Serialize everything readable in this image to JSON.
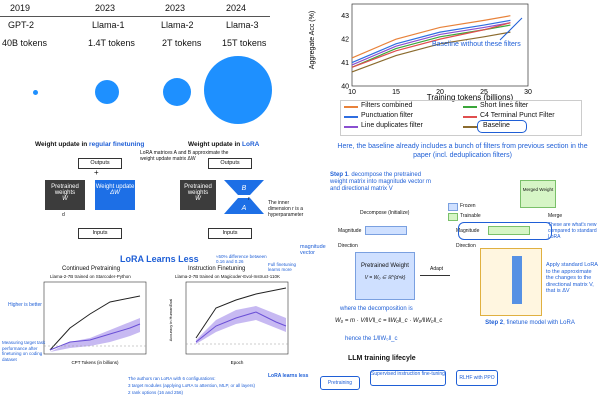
{
  "timeline": {
    "years": [
      "2019",
      "2023",
      "2023",
      "2024"
    ],
    "models": [
      "GPT-2",
      "Llama-1",
      "Llama-2",
      "Llama-3"
    ],
    "tokens": [
      "40B tokens",
      "1.4T tokens",
      "2T tokens",
      "15T tokens"
    ],
    "circle_color": "#1e90ff"
  },
  "filters_chart": {
    "chart_data": {
      "type": "line",
      "ylabel": "Aggregate Acc (%)",
      "xlabel": "Training tokens (billions)",
      "x_ticks": [
        "10",
        "15",
        "20",
        "25",
        "30"
      ],
      "y_ticks": [
        "40",
        "41",
        "42",
        "43"
      ],
      "xlim": [
        10,
        30
      ],
      "ylim": [
        40,
        43.5
      ],
      "annotation": "Baseline without these filters",
      "series": [
        {
          "name": "Filters combined",
          "color": "#e8823a",
          "x": [
            10,
            15,
            20,
            25,
            28
          ],
          "y": [
            41.2,
            42.0,
            42.5,
            42.8,
            43.0
          ]
        },
        {
          "name": "Punctuation filter",
          "color": "#2f6ee0",
          "x": [
            10,
            15,
            20,
            25,
            28
          ],
          "y": [
            41.0,
            41.8,
            42.3,
            42.6,
            42.8
          ]
        },
        {
          "name": "Line duplicates filter",
          "color": "#8a4fd0",
          "x": [
            10,
            15,
            20,
            25,
            28
          ],
          "y": [
            40.9,
            41.7,
            42.2,
            42.5,
            42.7
          ]
        },
        {
          "name": "Short lines filter",
          "color": "#3aa63a",
          "x": [
            10,
            15,
            20,
            25,
            28
          ],
          "y": [
            40.8,
            41.6,
            42.1,
            42.4,
            42.6
          ]
        },
        {
          "name": "C4 Terminal Punct Filter",
          "color": "#e04e4e",
          "x": [
            10,
            15,
            20,
            25,
            28
          ],
          "y": [
            40.8,
            41.5,
            42.0,
            42.4,
            42.7
          ]
        },
        {
          "name": "Baseline",
          "color": "#8b6b2e",
          "x": [
            10,
            15,
            20,
            25,
            28
          ],
          "y": [
            40.6,
            41.3,
            41.8,
            42.1,
            42.3
          ]
        }
      ]
    },
    "caption": "Here, the baseline already includes a bunch of filters from previous section in the paper (incl. deduplication filters)"
  },
  "lora_diagram": {
    "title_regular_prefix": "Weight update in ",
    "title_regular_hl": "regular finetuning",
    "title_lora_prefix": "Weight update in ",
    "title_lora_hl": "LoRA",
    "outputs": "Outputs",
    "inputs": "Inputs",
    "pretrained": "Pretrained weights",
    "pretrained_sym": "W",
    "update": "Weight update",
    "update_sym": "ΔW",
    "lora_note": "LoRA matrices A and B approximate the weight update matrix ΔW",
    "inner_dim_note": "The inner dimension r is a hyperparameter",
    "b_sym": "B",
    "a_sym": "A",
    "d_label": "d",
    "r_label": "r"
  },
  "lora_learns_less": {
    "title": "LoRA Learns Less",
    "left_title": "Continued Pretraining",
    "left_sub": "Llama-2-7B trained on Starcoder-Python",
    "right_title": "Instruction Finetuning",
    "right_sub": "Llama-2-7B trained on Magicoder-Evol-Instruct-110K",
    "diff_note": "≈50% difference between 0.16 and 0.26",
    "full_ft_note": "Full finetuning learns more",
    "higher_better": "Higher is better",
    "measuring_note": "Measuring target task performance after finetuning on coding dataset",
    "lora_less": "LoRA learns less",
    "configs_note": "The authors ran LoRA with 6 configurations:",
    "config_1": "3 target modules (applying LoRA to attention, MLP, or all layers)",
    "config_2": "2 rank options (16 and 256)",
    "left_xlabel": "CPT Tokens (in billions)",
    "right_xlabel": "Epoch",
    "ylabel": "Accuracy in HumanEval",
    "legend": [
      "LoRA rnk r ...",
      "LoRA r=256",
      "full finetuning"
    ],
    "base_model": "base model"
  },
  "dora": {
    "step1_title": "Step 1",
    "step1_text": ". decompose the pretrained weight matrix into magnitude vector m and directional matrix V",
    "decompose": "Decompose (Initialize)",
    "magnitude": "Magnitude",
    "direction": "Direction",
    "magnitude_vector": "magnitude vector",
    "pretrained": "Pretrained Weight",
    "pretrained_formula": "V = W₀ ∈ ℝ^{d×k}",
    "adapt": "Adapt",
    "merge": "Merge",
    "merged": "Merged Weight",
    "frozen": "Frozen",
    "trainable": "Trainable",
    "new_note": "These are what's new compared to standard LoRA",
    "apply_note": "Apply standard LoRA to the approximate the changes to the directional matrix V, that is ΔV",
    "where_note": "where the decomposition is",
    "formula": "W₀ = m · V/‖V‖_c = ‖W₀‖_c · W₀/‖W₀‖_c",
    "hence": "hence the 1/‖W₀‖_c",
    "step2_title": "Step 2",
    "step2_text": ", finetune model with LoRA"
  },
  "llm_lifecycle": {
    "title": "LLM training lifecyle",
    "stage1": "Pretraining",
    "stage2": "Supervised instruction fine-tuning",
    "stage3": "RLHF with PPO"
  }
}
